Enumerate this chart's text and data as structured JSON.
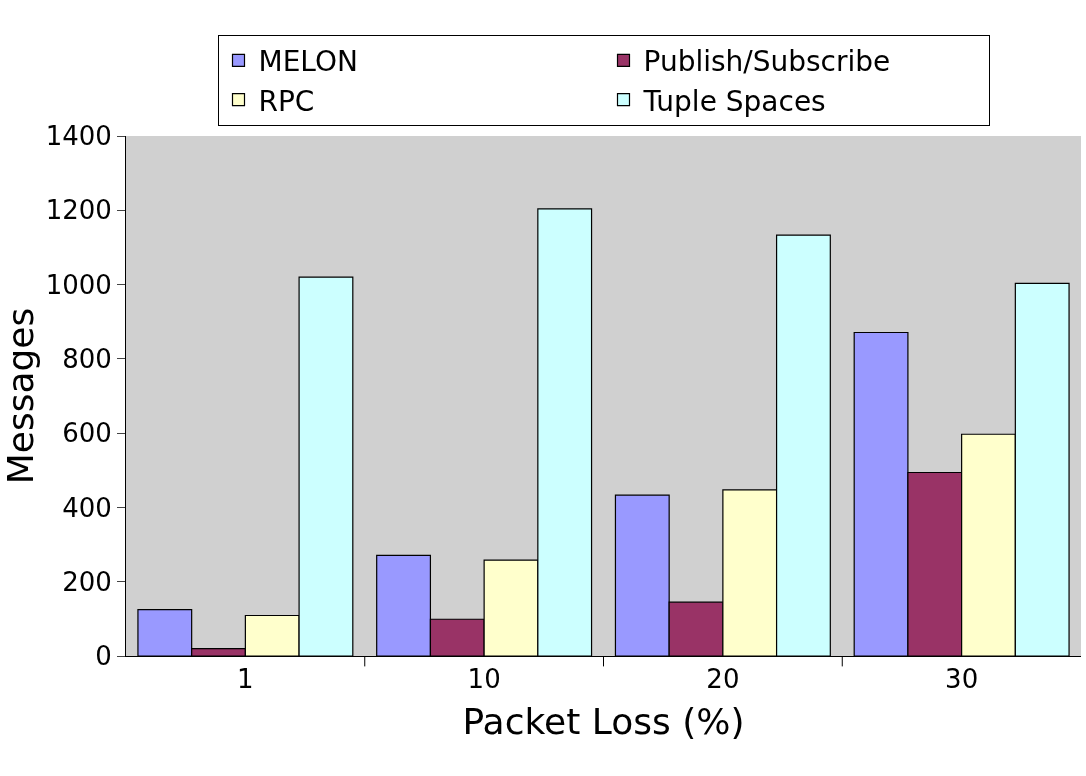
{
  "chart_data": {
    "type": "bar",
    "xlabel": "Packet Loss (%)",
    "ylabel": "Messages",
    "categories": [
      "1",
      "10",
      "20",
      "30"
    ],
    "series": [
      {
        "name": "MELON",
        "color": "#9999ff",
        "values": [
          125,
          271,
          433,
          871
        ]
      },
      {
        "name": "Publish/Subscribe",
        "color": "#993366",
        "values": [
          20,
          99,
          145,
          494
        ]
      },
      {
        "name": "RPC",
        "color": "#ffffcc",
        "values": [
          109,
          258,
          447,
          597
        ]
      },
      {
        "name": "Tuple Spaces",
        "color": "#ccffff",
        "values": [
          1020,
          1204,
          1133,
          1003
        ]
      }
    ],
    "ylim": [
      0,
      1400
    ],
    "yticks": [
      0,
      200,
      400,
      600,
      800,
      1000,
      1200,
      1400
    ],
    "grid": false,
    "legend": "top"
  }
}
